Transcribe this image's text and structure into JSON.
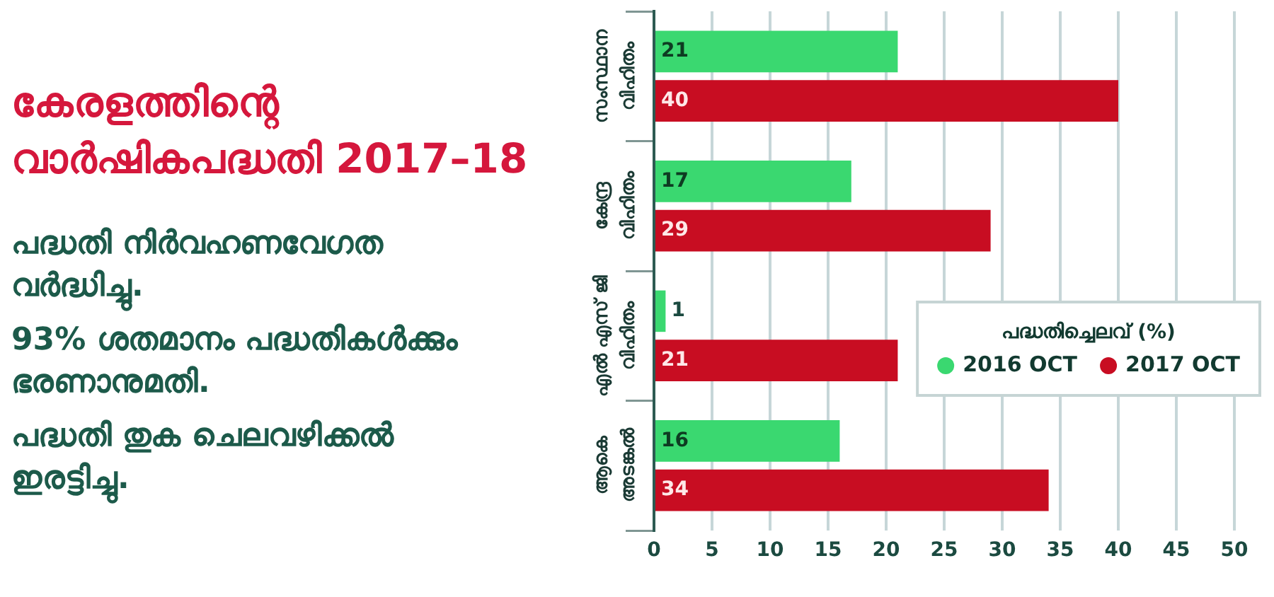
{
  "chart_data": {
    "type": "bar",
    "orientation": "horizontal",
    "title": "കേരളത്തിന്റെ\nവാർഷികപദ്ധതി 2017–18",
    "annotations": [
      "പദ്ധതി നിർവഹണവേഗത\nവർദ്ധിച്ചു.",
      "93% ശതമാനം പദ്ധതികൾക്കും\nഭരണാനുമതി.",
      "പദ്ധതി തുക ചെലവഴിക്കൽ\nഇരട്ടിച്ചു."
    ],
    "categories": [
      "സംസ്ഥാന\nവിഹിതം",
      "കേന്ദ്ര\nവിഹിതം",
      "എൽ എസ് ജി\nവിഹിതം",
      "ആകെ\nഅടങ്കൽ"
    ],
    "series": [
      {
        "name": "2016 OCT",
        "color": "#3ad870",
        "values": [
          21,
          17,
          1,
          16
        ]
      },
      {
        "name": "2017 OCT",
        "color": "#c80d22",
        "values": [
          40,
          29,
          21,
          34
        ]
      }
    ],
    "xlim": [
      0,
      50
    ],
    "xticks": [
      0,
      5,
      10,
      15,
      20,
      25,
      30,
      35,
      40,
      45,
      50
    ],
    "grid": "x",
    "legend": "right",
    "legend_title": "പദ്ധതിച്ചെലവ് (%)",
    "data_labels": true
  }
}
